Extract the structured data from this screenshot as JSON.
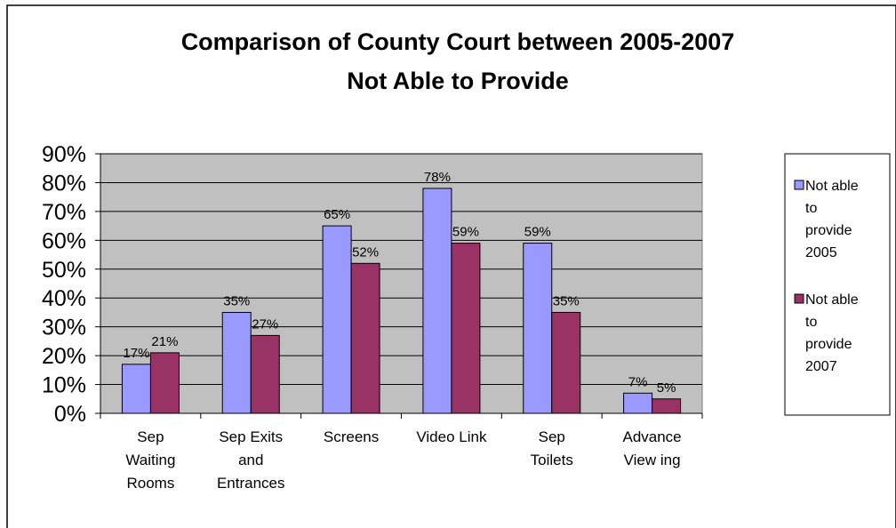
{
  "chart_data": {
    "type": "bar",
    "title": "Comparison of County Court between 2005-2007",
    "subtitle": "Not Able to Provide",
    "xlabel": "",
    "ylabel": "",
    "ylim": [
      0,
      0.9
    ],
    "yticks": [
      0,
      0.1,
      0.2,
      0.3,
      0.4,
      0.5,
      0.6,
      0.7,
      0.8,
      0.9
    ],
    "ytick_labels": [
      "0%",
      "10%",
      "20%",
      "30%",
      "40%",
      "50%",
      "60%",
      "70%",
      "80%",
      "90%"
    ],
    "grid": true,
    "legend_position": "right",
    "categories": [
      [
        "Sep",
        "Waiting",
        "Rooms"
      ],
      [
        "Sep Exits",
        "and",
        "Entrances"
      ],
      [
        "Screens"
      ],
      [
        "Video Link"
      ],
      [
        "Sep",
        "Toilets"
      ],
      [
        "Advance",
        "View ing"
      ]
    ],
    "series": [
      {
        "name": [
          "Not able",
          "to",
          "provide",
          "2005"
        ],
        "color": "#9999ff",
        "values": [
          0.17,
          0.35,
          0.65,
          0.78,
          0.59,
          0.07
        ],
        "labels": [
          "17%",
          "35%",
          "65%",
          "78%",
          "59%",
          "7%"
        ]
      },
      {
        "name": [
          "Not able",
          "to",
          "provide",
          "2007"
        ],
        "color": "#993366",
        "values": [
          0.21,
          0.27,
          0.52,
          0.59,
          0.35,
          0.05
        ],
        "labels": [
          "21%",
          "27%",
          "52%",
          "59%",
          "35%",
          "5%"
        ]
      }
    ],
    "plot_background": "#c0c0c0"
  }
}
